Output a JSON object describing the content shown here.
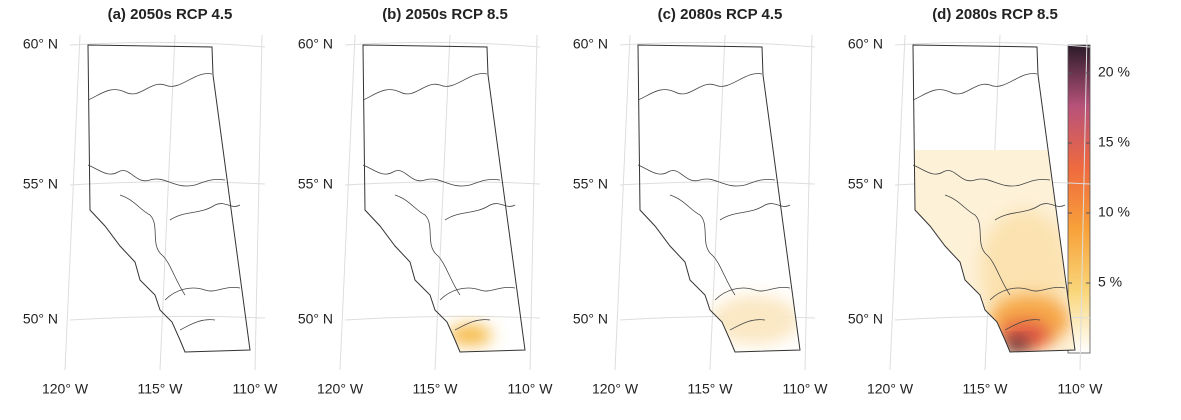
{
  "panels": [
    {
      "title": "(a) 2050s RCP 4.5"
    },
    {
      "title": "(b) 2050s RCP 8.5"
    },
    {
      "title": "(c) 2080s RCP 4.5"
    },
    {
      "title": "(d) 2080s RCP 8.5"
    }
  ],
  "latitude_labels": [
    "60° N",
    "55° N",
    "50° N"
  ],
  "longitude_labels": [
    "120° W",
    "115° W",
    "110° W"
  ],
  "colorbar": {
    "lim": [
      0,
      22
    ],
    "ticks": [
      {
        "value": 5,
        "label": "5 %"
      },
      {
        "value": 10,
        "label": "10 %"
      },
      {
        "value": 15,
        "label": "15 %"
      },
      {
        "value": 20,
        "label": "20 %"
      }
    ]
  }
}
